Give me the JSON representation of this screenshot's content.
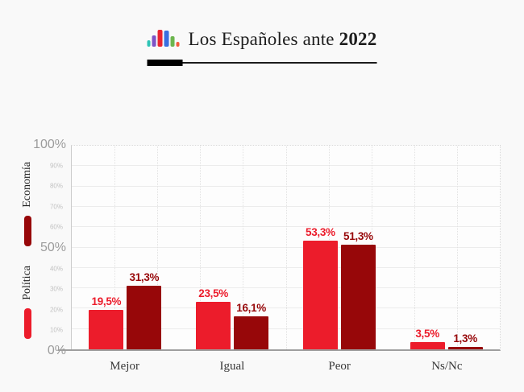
{
  "header": {
    "title_prefix": "Los Españoles ante ",
    "title_year": "2022",
    "logo_bars": [
      {
        "name": "teal",
        "color": "#2ec4b6",
        "w": 4,
        "h": 8
      },
      {
        "name": "purple",
        "color": "#7e52c5",
        "w": 5,
        "h": 14
      },
      {
        "name": "red",
        "color": "#ea2430",
        "w": 6,
        "h": 21
      },
      {
        "name": "blue",
        "color": "#3a6fe0",
        "w": 6,
        "h": 20
      },
      {
        "name": "green",
        "color": "#6cb54e",
        "w": 5,
        "h": 13
      },
      {
        "name": "orange",
        "color": "#f25b3d",
        "w": 4,
        "h": 6
      }
    ]
  },
  "legend": {
    "items": [
      {
        "label": "Economía",
        "color": "#970709"
      },
      {
        "label": "Política",
        "color": "#ec1c2b"
      }
    ]
  },
  "chart_data": {
    "type": "bar",
    "categories": [
      "Mejor",
      "Igual",
      "Peor",
      "Ns/Nc"
    ],
    "series": [
      {
        "name": "Política",
        "color": "#ec1c2b",
        "values": [
          19.5,
          23.5,
          53.3,
          3.5
        ],
        "labels": [
          "19,5%",
          "23,5%",
          "53,3%",
          "3,5%"
        ]
      },
      {
        "name": "Economía",
        "color": "#970709",
        "values": [
          31.3,
          16.1,
          51.3,
          1.3
        ],
        "labels": [
          "31,3%",
          "16,1%",
          "51,3%",
          "1,3%"
        ]
      }
    ],
    "ylim": [
      0,
      100
    ],
    "yticks": [
      {
        "value": 100,
        "label": "100%",
        "major": true
      },
      {
        "value": 90,
        "label": "90%",
        "major": false
      },
      {
        "value": 80,
        "label": "80%",
        "major": false
      },
      {
        "value": 70,
        "label": "70%",
        "major": false
      },
      {
        "value": 60,
        "label": "60%",
        "major": false
      },
      {
        "value": 50,
        "label": "50%",
        "major": true
      },
      {
        "value": 40,
        "label": "40%",
        "major": false
      },
      {
        "value": 30,
        "label": "30%",
        "major": false
      },
      {
        "value": 20,
        "label": "20%",
        "major": false
      },
      {
        "value": 10,
        "label": "10%",
        "major": false
      },
      {
        "value": 0,
        "label": "0%",
        "major": true
      }
    ],
    "grid": true,
    "legend_position": "left"
  }
}
